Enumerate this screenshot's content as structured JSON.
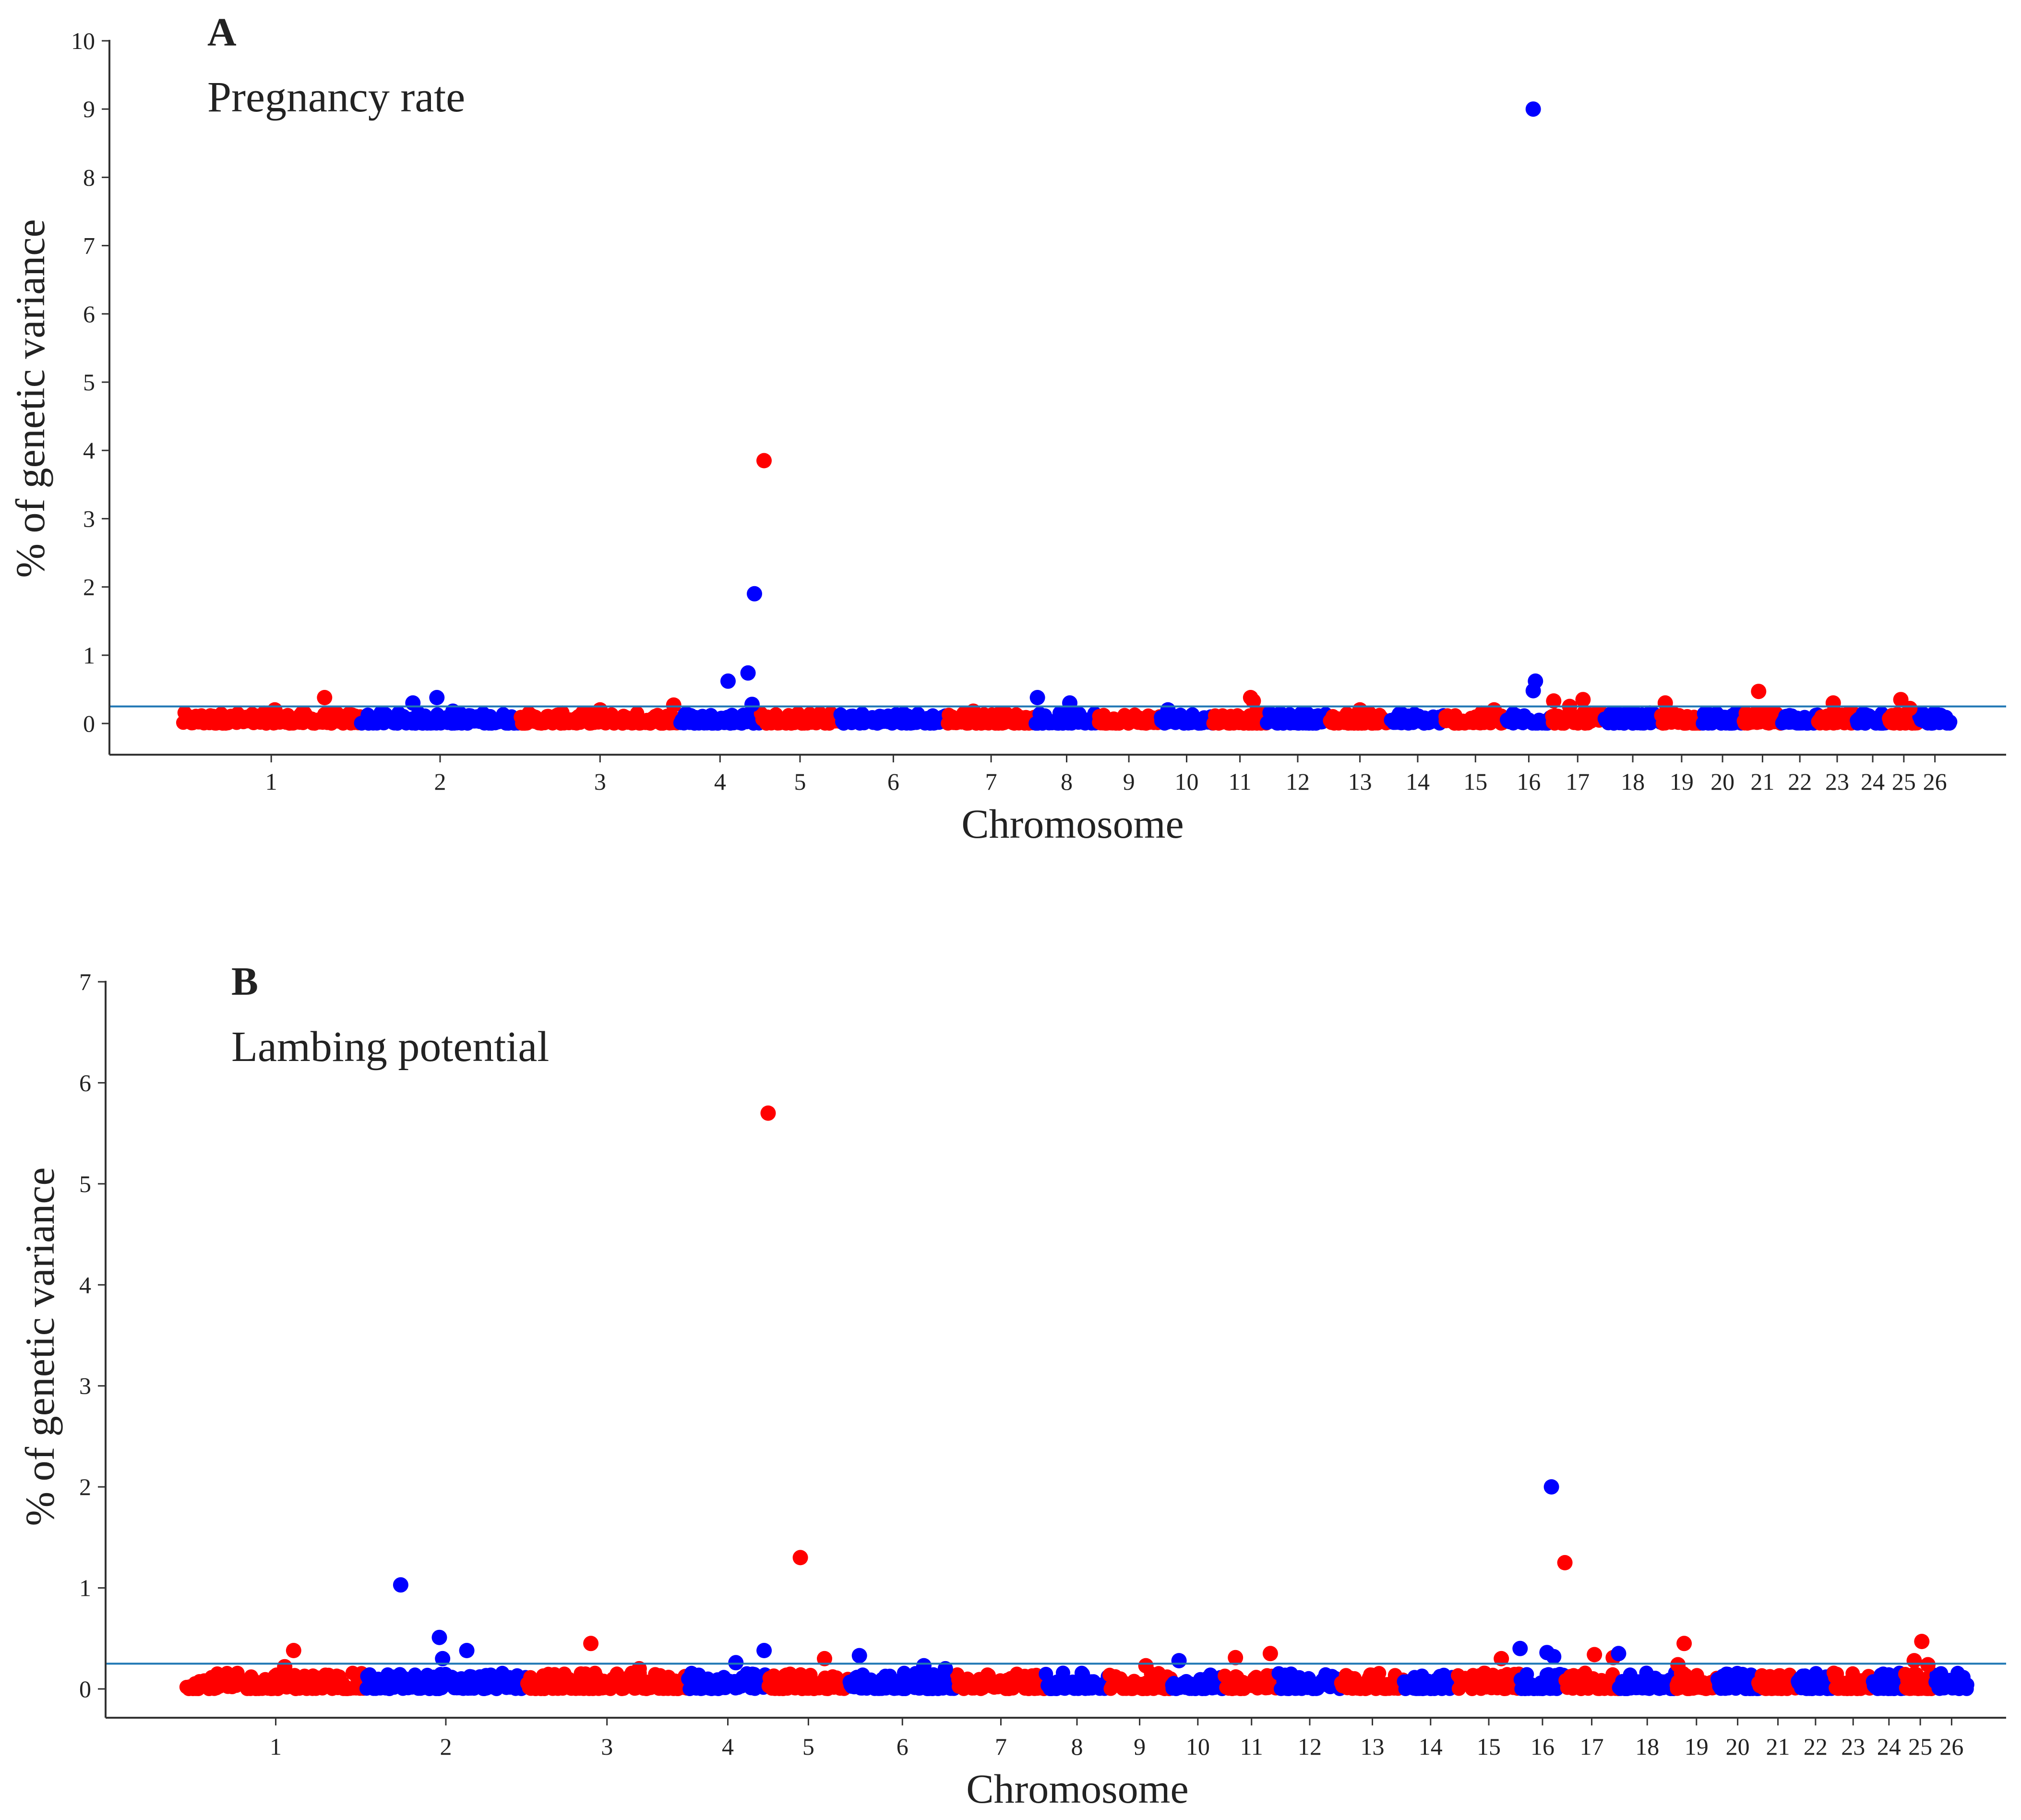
{
  "chart_data": [
    {
      "panel_label": "A",
      "title": "Pregnancy rate",
      "type": "scatter",
      "xlabel": "Chromosome",
      "ylabel": "% of genetic variance",
      "ylim": [
        0,
        10
      ],
      "yticks": [
        0,
        1,
        2,
        3,
        4,
        5,
        6,
        7,
        8,
        9,
        10
      ],
      "threshold": 0.25,
      "colors": {
        "odd": "#ff0000",
        "even": "#0000ff",
        "threshold": "#1f77b4",
        "axis": "#333333"
      },
      "chromosomes": [
        "1",
        "2",
        "3",
        "4",
        "5",
        "6",
        "7",
        "8",
        "9",
        "10",
        "11",
        "12",
        "13",
        "14",
        "15",
        "16",
        "17",
        "18",
        "19",
        "20",
        "21",
        "22",
        "23",
        "24",
        "25",
        "26"
      ],
      "chrom_spans": [
        [
          0,
          100
        ],
        [
          100,
          190
        ],
        [
          190,
          280
        ],
        [
          280,
          325
        ],
        [
          325,
          370
        ],
        [
          370,
          430
        ],
        [
          430,
          480
        ],
        [
          480,
          515
        ],
        [
          515,
          550
        ],
        [
          550,
          580
        ],
        [
          580,
          610
        ],
        [
          610,
          645
        ],
        [
          645,
          680
        ],
        [
          680,
          710
        ],
        [
          710,
          745
        ],
        [
          745,
          770
        ],
        [
          770,
          800
        ],
        [
          800,
          832
        ],
        [
          832,
          855
        ],
        [
          855,
          878
        ],
        [
          878,
          900
        ],
        [
          900,
          920
        ],
        [
          920,
          942
        ],
        [
          942,
          960
        ],
        [
          960,
          977
        ],
        [
          977,
          995
        ]
      ],
      "peaks": [
        {
          "chrom": 1,
          "pos": 0.8,
          "value": 0.38
        },
        {
          "chrom": 1,
          "pos": 0.52,
          "value": 0.2
        },
        {
          "chrom": 2,
          "pos": 0.33,
          "value": 0.3
        },
        {
          "chrom": 2,
          "pos": 0.48,
          "value": 0.38
        },
        {
          "chrom": 2,
          "pos": 0.58,
          "value": 0.18
        },
        {
          "chrom": 3,
          "pos": 0.5,
          "value": 0.2
        },
        {
          "chrom": 3,
          "pos": 0.96,
          "value": 0.27
        },
        {
          "chrom": 4,
          "pos": 0.6,
          "value": 0.62
        },
        {
          "chrom": 4,
          "pos": 0.85,
          "value": 0.74
        },
        {
          "chrom": 4,
          "pos": 0.93,
          "value": 1.9
        },
        {
          "chrom": 4,
          "pos": 0.9,
          "value": 0.28
        },
        {
          "chrom": 5,
          "pos": 0.05,
          "value": 3.85
        },
        {
          "chrom": 7,
          "pos": 0.3,
          "value": 0.18
        },
        {
          "chrom": 8,
          "pos": 0.03,
          "value": 0.38
        },
        {
          "chrom": 8,
          "pos": 0.55,
          "value": 0.3
        },
        {
          "chrom": 10,
          "pos": 0.15,
          "value": 0.2
        },
        {
          "chrom": 11,
          "pos": 0.7,
          "value": 0.38
        },
        {
          "chrom": 11,
          "pos": 0.75,
          "value": 0.33
        },
        {
          "chrom": 13,
          "pos": 0.5,
          "value": 0.2
        },
        {
          "chrom": 15,
          "pos": 0.8,
          "value": 0.2
        },
        {
          "chrom": 16,
          "pos": 0.6,
          "value": 9.0
        },
        {
          "chrom": 16,
          "pos": 0.6,
          "value": 0.48
        },
        {
          "chrom": 16,
          "pos": 0.65,
          "value": 0.62
        },
        {
          "chrom": 17,
          "pos": 0.05,
          "value": 0.33
        },
        {
          "chrom": 17,
          "pos": 0.35,
          "value": 0.25
        },
        {
          "chrom": 17,
          "pos": 0.6,
          "value": 0.35
        },
        {
          "chrom": 19,
          "pos": 0.1,
          "value": 0.3
        },
        {
          "chrom": 21,
          "pos": 0.4,
          "value": 0.47
        },
        {
          "chrom": 23,
          "pos": 0.4,
          "value": 0.3
        },
        {
          "chrom": 25,
          "pos": 0.4,
          "value": 0.35
        },
        {
          "chrom": 25,
          "pos": 0.7,
          "value": 0.22
        }
      ]
    },
    {
      "panel_label": "B",
      "title": "Lambing potential",
      "type": "scatter",
      "xlabel": "Chromosome",
      "ylabel": "% of genetic variance",
      "ylim": [
        0,
        7
      ],
      "yticks": [
        0,
        1,
        2,
        3,
        4,
        5,
        6,
        7
      ],
      "threshold": 0.25,
      "colors": {
        "odd": "#ff0000",
        "even": "#0000ff",
        "threshold": "#1f77b4",
        "axis": "#333333"
      },
      "chromosomes": [
        "1",
        "2",
        "3",
        "4",
        "5",
        "6",
        "7",
        "8",
        "9",
        "10",
        "11",
        "12",
        "13",
        "14",
        "15",
        "16",
        "17",
        "18",
        "19",
        "20",
        "21",
        "22",
        "23",
        "24",
        "25",
        "26"
      ],
      "chrom_spans": [
        [
          0,
          100
        ],
        [
          100,
          190
        ],
        [
          190,
          280
        ],
        [
          280,
          325
        ],
        [
          325,
          370
        ],
        [
          370,
          430
        ],
        [
          430,
          480
        ],
        [
          480,
          515
        ],
        [
          515,
          550
        ],
        [
          550,
          580
        ],
        [
          580,
          610
        ],
        [
          610,
          645
        ],
        [
          645,
          680
        ],
        [
          680,
          710
        ],
        [
          710,
          745
        ],
        [
          745,
          770
        ],
        [
          770,
          800
        ],
        [
          800,
          832
        ],
        [
          832,
          855
        ],
        [
          855,
          878
        ],
        [
          878,
          900
        ],
        [
          900,
          920
        ],
        [
          920,
          942
        ],
        [
          942,
          960
        ],
        [
          960,
          977
        ],
        [
          977,
          995
        ]
      ],
      "peaks": [
        {
          "chrom": 1,
          "pos": 0.55,
          "value": 0.22
        },
        {
          "chrom": 1,
          "pos": 0.6,
          "value": 0.38
        },
        {
          "chrom": 2,
          "pos": 0.22,
          "value": 1.03
        },
        {
          "chrom": 2,
          "pos": 0.46,
          "value": 0.51
        },
        {
          "chrom": 2,
          "pos": 0.48,
          "value": 0.3
        },
        {
          "chrom": 2,
          "pos": 0.63,
          "value": 0.38
        },
        {
          "chrom": 3,
          "pos": 0.4,
          "value": 0.45
        },
        {
          "chrom": 3,
          "pos": 0.7,
          "value": 0.2
        },
        {
          "chrom": 4,
          "pos": 0.6,
          "value": 0.26
        },
        {
          "chrom": 4,
          "pos": 0.95,
          "value": 0.38
        },
        {
          "chrom": 5,
          "pos": 0.0,
          "value": 5.7
        },
        {
          "chrom": 5,
          "pos": 0.4,
          "value": 1.3
        },
        {
          "chrom": 5,
          "pos": 0.7,
          "value": 0.3
        },
        {
          "chrom": 6,
          "pos": 0.1,
          "value": 0.33
        },
        {
          "chrom": 6,
          "pos": 0.7,
          "value": 0.23
        },
        {
          "chrom": 6,
          "pos": 0.9,
          "value": 0.2
        },
        {
          "chrom": 9,
          "pos": 0.6,
          "value": 0.23
        },
        {
          "chrom": 10,
          "pos": 0.15,
          "value": 0.28
        },
        {
          "chrom": 11,
          "pos": 0.2,
          "value": 0.31
        },
        {
          "chrom": 11,
          "pos": 0.85,
          "value": 0.35
        },
        {
          "chrom": 15,
          "pos": 0.7,
          "value": 0.3
        },
        {
          "chrom": 16,
          "pos": 0.0,
          "value": 0.4
        },
        {
          "chrom": 16,
          "pos": 0.6,
          "value": 0.36
        },
        {
          "chrom": 16,
          "pos": 0.7,
          "value": 2.0
        },
        {
          "chrom": 16,
          "pos": 0.75,
          "value": 0.32
        },
        {
          "chrom": 17,
          "pos": 0.0,
          "value": 1.25
        },
        {
          "chrom": 17,
          "pos": 0.55,
          "value": 0.34
        },
        {
          "chrom": 17,
          "pos": 0.9,
          "value": 0.31
        },
        {
          "chrom": 18,
          "pos": 0.0,
          "value": 0.35
        },
        {
          "chrom": 19,
          "pos": 0.05,
          "value": 0.24
        },
        {
          "chrom": 19,
          "pos": 0.2,
          "value": 0.45
        },
        {
          "chrom": 25,
          "pos": 0.3,
          "value": 0.28
        },
        {
          "chrom": 25,
          "pos": 0.55,
          "value": 0.47
        },
        {
          "chrom": 25,
          "pos": 0.75,
          "value": 0.24
        }
      ]
    }
  ]
}
